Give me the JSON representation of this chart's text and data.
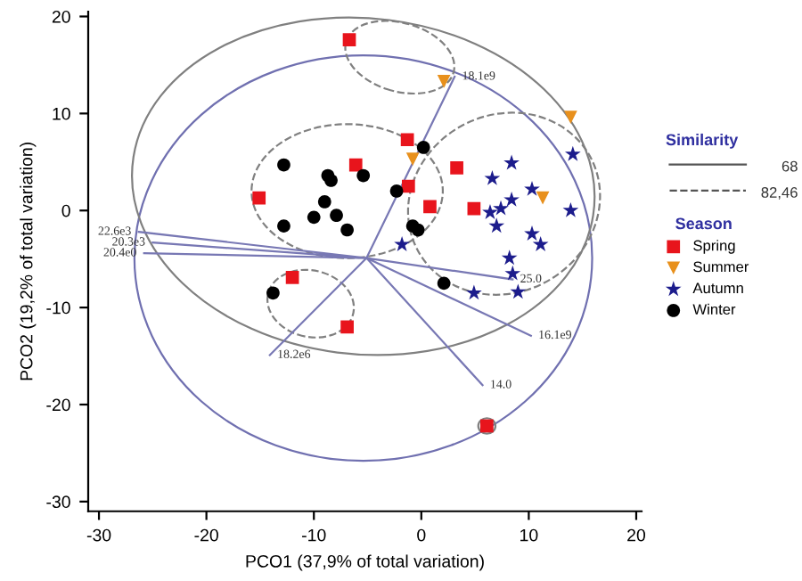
{
  "chart_data": {
    "type": "scatter",
    "xlabel": "PCO1 (37,9% of total variation)",
    "ylabel": "PCO2 (19,2% of total variation)",
    "legend_title": "Season",
    "xlim": [
      -31,
      20.5
    ],
    "ylim": [
      -31,
      20.5
    ],
    "xticks": [
      -30,
      -20,
      -10,
      0,
      10,
      20
    ],
    "yticks": [
      -30,
      -20,
      -10,
      0,
      10,
      20
    ],
    "grid": false,
    "legend": "right",
    "series": [
      {
        "name": "Spring",
        "color": "#e8141c",
        "marker": "square",
        "x": [
          -6.7,
          -15.1,
          -6.1,
          -1.3,
          -1.2,
          3.3,
          0.8,
          4.9,
          -12.0,
          -6.9,
          6.1
        ],
        "values": [
          17.6,
          1.3,
          4.7,
          7.3,
          2.5,
          4.4,
          0.4,
          0.2,
          -6.9,
          -12.0,
          -22.2
        ]
      },
      {
        "name": "Summer",
        "color": "#e8901c",
        "marker": "triangle",
        "x": [
          2.1,
          13.9,
          -0.8,
          11.3
        ],
        "values": [
          13.3,
          9.6,
          5.3,
          1.3
        ]
      },
      {
        "name": "Autumn",
        "color": "#1c1c8c",
        "marker": "star",
        "x": [
          8.4,
          6.6,
          14.1,
          10.3,
          8.4,
          7.4,
          6.4,
          7.0,
          13.9,
          10.3,
          11.1,
          8.2,
          8.5,
          4.9,
          9.0,
          -1.8
        ],
        "values": [
          4.9,
          3.3,
          5.8,
          2.2,
          1.1,
          0.2,
          -0.2,
          -1.6,
          0.0,
          -2.4,
          -3.5,
          -4.9,
          -6.5,
          -8.5,
          -8.4,
          -3.5
        ]
      },
      {
        "name": "Winter",
        "color": "#000000",
        "marker": "circle",
        "x": [
          -12.8,
          -8.7,
          -8.4,
          -5.4,
          -9.0,
          -7.9,
          -10.0,
          -6.9,
          -12.8,
          -2.3,
          0.2,
          -0.8,
          -0.3,
          2.1,
          -13.8
        ],
        "values": [
          4.7,
          3.6,
          3.1,
          3.6,
          0.9,
          -0.5,
          -0.7,
          -2.0,
          -1.6,
          2.0,
          6.5,
          -1.6,
          -2.0,
          -7.5,
          -8.5
        ]
      },
      {
        "type": "line",
        "color": "#7878b4",
        "x": [
          -26.3,
          -5.1,
          null,
          -25.0,
          -5.1,
          null,
          -25.8,
          -5.1,
          null,
          3.1,
          -5.1,
          null,
          8.5,
          -5.1,
          null,
          10.2,
          -5.1,
          null,
          5.7,
          -5.1,
          null,
          -14.1,
          -5.1
        ],
        "values": [
          -2.2,
          -4.9,
          null,
          -3.3,
          -4.9,
          null,
          -4.4,
          -4.9,
          null,
          13.8,
          -4.9,
          null,
          -7.1,
          -4.9,
          null,
          -12.9,
          -4.9,
          null,
          -18.0,
          -4.9,
          null,
          -14.9,
          -4.9
        ]
      }
    ],
    "annotations": [
      {
        "text": "22.6e3",
        "x": -26.3,
        "y": -2.2
      },
      {
        "text": "20.3e3",
        "x": -25.0,
        "y": -3.3
      },
      {
        "text": "20.4e0",
        "x": -25.8,
        "y": -4.4
      },
      {
        "text": "18.1e9",
        "x": 3.1,
        "y": 13.8
      },
      {
        "text": "25.0",
        "x": 8.5,
        "y": -7.1
      },
      {
        "text": "16.1e9",
        "x": 10.2,
        "y": -12.9
      },
      {
        "text": "14.0",
        "x": 5.7,
        "y": -18.0
      },
      {
        "text": "18.2e6",
        "x": -14.1,
        "y": -14.9
      },
      "Similarity",
      "68",
      "82,46"
    ]
  }
}
